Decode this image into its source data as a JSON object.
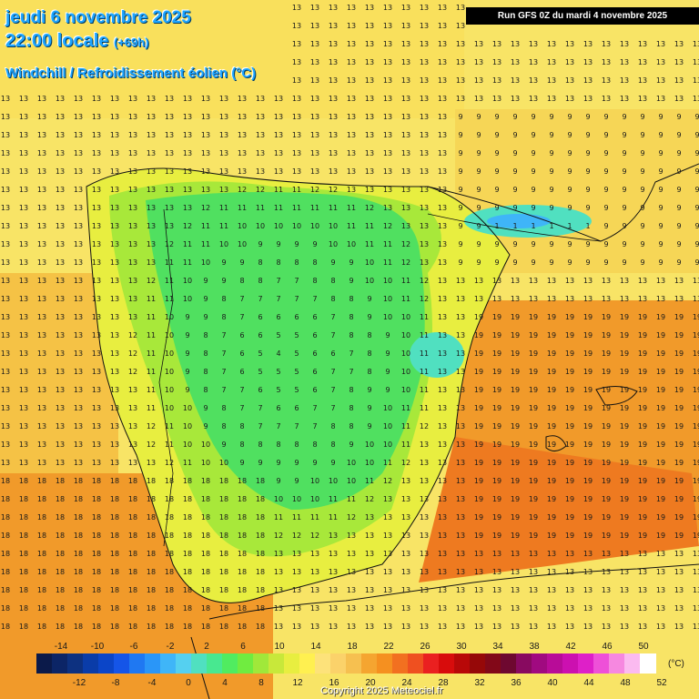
{
  "header": {
    "date_line": "jeudi 6 novembre 2025",
    "time_line": "22:00 locale",
    "lead_time": "(+69h)",
    "parameter": "Windchill / Refroidissement éolien (°C)",
    "run_info": "Run GFS 0Z du mardi 4 novembre 2025"
  },
  "legend": {
    "unit": "(°C)",
    "top_ticks": [
      "-14",
      "-10",
      "-6",
      "-2",
      "2",
      "6",
      "10",
      "14",
      "18",
      "22",
      "26",
      "30",
      "34",
      "38",
      "42",
      "46",
      "50"
    ],
    "bottom_ticks": [
      "-12",
      "-8",
      "-4",
      "0",
      "4",
      "8",
      "12",
      "16",
      "20",
      "24",
      "28",
      "32",
      "36",
      "40",
      "44",
      "48",
      "52"
    ],
    "colors": [
      "#0b1a4a",
      "#0c2566",
      "#0d3180",
      "#0a3ca8",
      "#0b45c8",
      "#1555e8",
      "#1f78f2",
      "#2a96f8",
      "#3fb5f8",
      "#55d0f0",
      "#50e0c0",
      "#48e890",
      "#50ec60",
      "#70ec40",
      "#a0e83a",
      "#c8e83a",
      "#e8ee40",
      "#fff050",
      "#fde27a",
      "#fbd26a",
      "#f6c050",
      "#f5a530",
      "#f59020",
      "#f27020",
      "#ef5020",
      "#ea2020",
      "#d80c0c",
      "#b80808",
      "#960808",
      "#820818",
      "#6e0830",
      "#880a60",
      "#a00a80",
      "#b80c98",
      "#cc10b0",
      "#de20c8",
      "#ee50d8",
      "#f688e0",
      "#fbbaf0",
      "#ffffff"
    ]
  },
  "copyright": "Copyright 2025 Meteociel.fr"
}
